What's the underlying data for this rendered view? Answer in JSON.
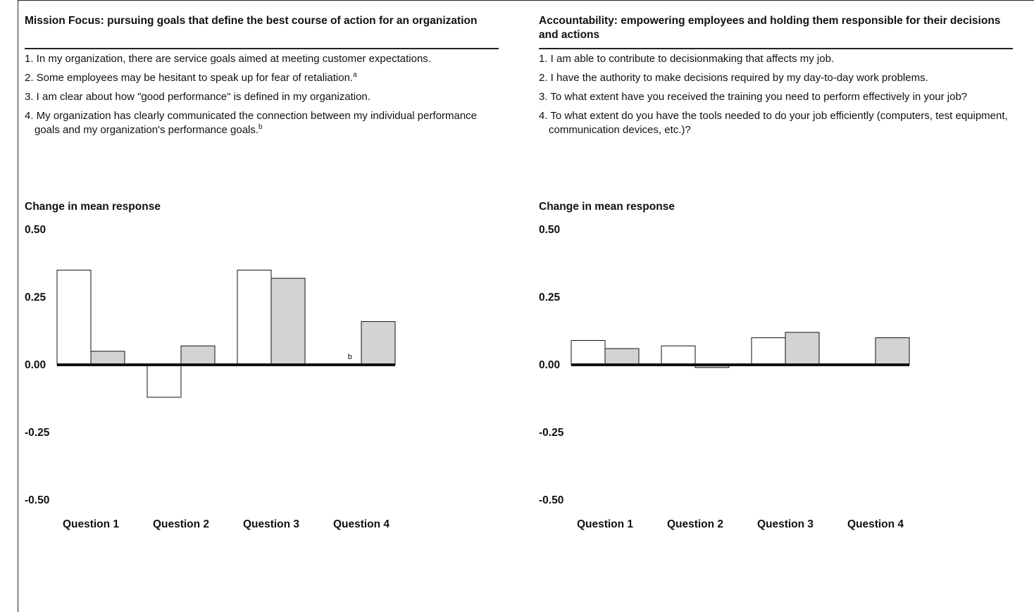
{
  "panels": [
    {
      "title": "Mission Focus:  pursuing goals that define the best course of action for an organization",
      "questions": [
        {
          "text": "1. In my organization, there are service goals aimed at meeting customer expectations.",
          "note": ""
        },
        {
          "text": "2. Some employees may be hesitant to speak up for fear of retaliation.",
          "note": "a"
        },
        {
          "text": "3. I am clear about how \"good performance\" is defined in my organization.",
          "note": ""
        },
        {
          "text": "4. My organization has clearly communicated the connection between my individual performance goals and my organization's performance goals.",
          "note": "b"
        }
      ],
      "ylabel": "Change in mean response"
    },
    {
      "title": "Accountability:  empowering employees and holding them responsible for their decisions and actions",
      "questions": [
        {
          "text": "1. I am able to contribute to decisionmaking that affects my job.",
          "note": ""
        },
        {
          "text": "2. I have the authority to make decisions required by my day-to-day work problems.",
          "note": ""
        },
        {
          "text": "3. To what extent have you received the training you need to perform effectively in your job?",
          "note": ""
        },
        {
          "text": "4. To what extent do you have the tools needed to do your job efficiently (computers, test equipment, communication devices, etc.)?",
          "note": ""
        }
      ],
      "ylabel": "Change in mean response"
    }
  ],
  "chart_data": [
    {
      "type": "bar",
      "categories": [
        "Question 1",
        "Question 2",
        "Question 3",
        "Question 4"
      ],
      "series": [
        {
          "values": [
            0.35,
            -0.12,
            0.35,
            null
          ],
          "color": "#ffffff"
        },
        {
          "values": [
            0.05,
            0.07,
            0.32,
            0.16
          ],
          "color": "#d3d3d3"
        }
      ],
      "annotations": [
        {
          "category": "Question 4",
          "series": 0,
          "text": "b"
        }
      ],
      "yticks": [
        "0.50",
        "0.25",
        "0.00",
        "-0.25",
        "-0.50"
      ],
      "ylim": [
        -0.5,
        0.5
      ]
    },
    {
      "type": "bar",
      "categories": [
        "Question 1",
        "Question 2",
        "Question 3",
        "Question 4"
      ],
      "series": [
        {
          "values": [
            0.09,
            0.07,
            0.1,
            null
          ],
          "color": "#ffffff"
        },
        {
          "values": [
            0.06,
            -0.01,
            0.12,
            0.1
          ],
          "color": "#d3d3d3"
        }
      ],
      "annotations": [],
      "yticks": [
        "0.50",
        "0.25",
        "0.00",
        "-0.25",
        "-0.50"
      ],
      "ylim": [
        -0.5,
        0.5
      ]
    }
  ]
}
